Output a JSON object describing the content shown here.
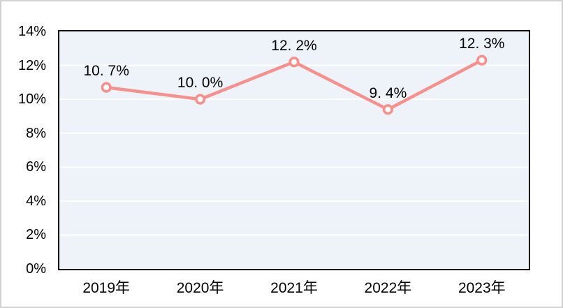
{
  "chart_data": {
    "type": "line",
    "categories": [
      "2019年",
      "2020年",
      "2021年",
      "2022年",
      "2023年"
    ],
    "series": [
      {
        "name": "percentage",
        "values": [
          10.7,
          10.0,
          12.2,
          9.4,
          12.3
        ],
        "point_labels": [
          "10. 7%",
          "10. 0%",
          "12. 2%",
          "9. 4%",
          "12. 3%"
        ]
      }
    ],
    "title": "",
    "xlabel": "",
    "ylabel": "",
    "ylim": [
      0,
      14
    ],
    "ytick_step": 2,
    "ytick_labels": [
      "0%",
      "2%",
      "4%",
      "6%",
      "8%",
      "10%",
      "12%",
      "14%"
    ],
    "grid": "horizontal",
    "legend_position": "none",
    "colors": {
      "line": "#f78f8c",
      "marker_fill": "#ffffff",
      "marker_stroke": "#f78f8c",
      "plot_background": "#edf3f8",
      "gridline": "#ffffff",
      "plot_border": "#000000",
      "outer_frame": "#d2d2d2",
      "text": "#000000"
    }
  }
}
